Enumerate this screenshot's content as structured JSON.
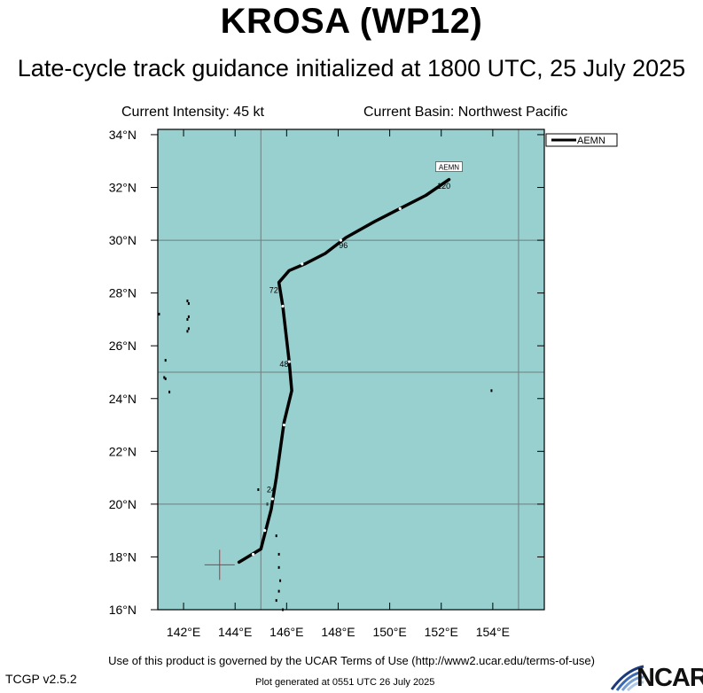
{
  "header": {
    "title": "KROSA (WP12)",
    "subtitle": "Late-cycle track guidance initialized at 1800 UTC, 25 July 2025",
    "intensity": "Current Intensity: 45 kt",
    "basin": "Current Basin: Northwest Pacific"
  },
  "footer": {
    "terms": "Use of this product is governed by the UCAR Terms of Use (http://www2.ucar.edu/terms-of-use)",
    "version": "TCGP v2.5.2",
    "generated": "Plot generated at 0551 UTC   26 July 2025",
    "logo_text": "NCAR"
  },
  "colors": {
    "ocean": "#98cfcf",
    "grid": "#6b7f7f",
    "track": "#000000",
    "current_position": "#e02020",
    "land": "#000000"
  },
  "chart_data": {
    "type": "line",
    "title": "KROSA (WP12)",
    "xlim": [
      141,
      156
    ],
    "ylim": [
      16,
      34.2
    ],
    "x_ticks": [
      142,
      144,
      146,
      148,
      150,
      152,
      154
    ],
    "x_tick_labels": [
      "142°E",
      "144°E",
      "146°E",
      "148°E",
      "150°E",
      "152°E",
      "154°E"
    ],
    "y_ticks": [
      16,
      18,
      20,
      22,
      24,
      26,
      28,
      30,
      32,
      34
    ],
    "y_tick_labels": [
      "16°N",
      "18°N",
      "20°N",
      "22°N",
      "24°N",
      "26°N",
      "28°N",
      "30°N",
      "32°N",
      "34°N"
    ],
    "grid_lon": [
      145,
      155
    ],
    "grid_lat": [
      20,
      25,
      30
    ],
    "legend": {
      "position": "top-right",
      "entries": [
        "AEMN"
      ]
    },
    "current_position": {
      "lon": 143.4,
      "lat": 17.7
    },
    "series": [
      {
        "name": "AEMN",
        "end_label": "AEMN",
        "points": [
          {
            "lon": 144.15,
            "lat": 17.8
          },
          {
            "lon": 145.0,
            "lat": 18.3
          },
          {
            "lon": 145.4,
            "lat": 19.8
          },
          {
            "lon": 145.6,
            "lat": 21.0
          },
          {
            "lon": 145.9,
            "lat": 23.1
          },
          {
            "lon": 146.2,
            "lat": 24.3
          },
          {
            "lon": 146.1,
            "lat": 25.4
          },
          {
            "lon": 145.85,
            "lat": 27.5
          },
          {
            "lon": 145.7,
            "lat": 28.4
          },
          {
            "lon": 146.1,
            "lat": 28.85
          },
          {
            "lon": 146.7,
            "lat": 29.1
          },
          {
            "lon": 147.5,
            "lat": 29.5
          },
          {
            "lon": 148.3,
            "lat": 30.1
          },
          {
            "lon": 149.4,
            "lat": 30.7
          },
          {
            "lon": 150.4,
            "lat": 31.2
          },
          {
            "lon": 151.4,
            "lat": 31.7
          },
          {
            "lon": 152.3,
            "lat": 32.3
          }
        ],
        "tick_marks": [
          {
            "lon": 144.7,
            "lat": 18.1
          },
          {
            "lon": 145.15,
            "lat": 19.0
          },
          {
            "lon": 145.45,
            "lat": 20.2
          },
          {
            "lon": 145.9,
            "lat": 23.0
          },
          {
            "lon": 146.1,
            "lat": 25.4
          },
          {
            "lon": 145.85,
            "lat": 27.5
          },
          {
            "lon": 146.6,
            "lat": 29.1
          },
          {
            "lon": 148.1,
            "lat": 30.0
          },
          {
            "lon": 150.4,
            "lat": 31.2
          }
        ],
        "hour_labels": [
          {
            "text": "24",
            "lon": 145.4,
            "lat": 20.55
          },
          {
            "text": "48",
            "lon": 145.9,
            "lat": 25.3
          },
          {
            "text": "72",
            "lon": 145.5,
            "lat": 28.1
          },
          {
            "text": "96",
            "lon": 148.2,
            "lat": 29.8
          },
          {
            "text": "120",
            "lon": 152.1,
            "lat": 32.05
          }
        ]
      }
    ],
    "islands": [
      {
        "lon": 142.15,
        "lat": 27.7
      },
      {
        "lon": 142.2,
        "lat": 27.6
      },
      {
        "lon": 142.2,
        "lat": 27.1
      },
      {
        "lon": 142.15,
        "lat": 27.0
      },
      {
        "lon": 142.2,
        "lat": 26.65
      },
      {
        "lon": 142.15,
        "lat": 26.55
      },
      {
        "lon": 141.05,
        "lat": 27.2
      },
      {
        "lon": 141.3,
        "lat": 25.45
      },
      {
        "lon": 141.25,
        "lat": 24.8
      },
      {
        "lon": 141.3,
        "lat": 24.75
      },
      {
        "lon": 141.45,
        "lat": 24.25
      },
      {
        "lon": 153.95,
        "lat": 24.3
      },
      {
        "lon": 144.9,
        "lat": 20.55
      },
      {
        "lon": 145.25,
        "lat": 20.0
      },
      {
        "lon": 145.6,
        "lat": 18.8
      },
      {
        "lon": 145.7,
        "lat": 18.1
      },
      {
        "lon": 145.7,
        "lat": 17.6
      },
      {
        "lon": 145.75,
        "lat": 17.1
      },
      {
        "lon": 145.7,
        "lat": 16.7
      },
      {
        "lon": 145.6,
        "lat": 16.35
      },
      {
        "lon": 145.85,
        "lat": 16.0
      }
    ]
  }
}
